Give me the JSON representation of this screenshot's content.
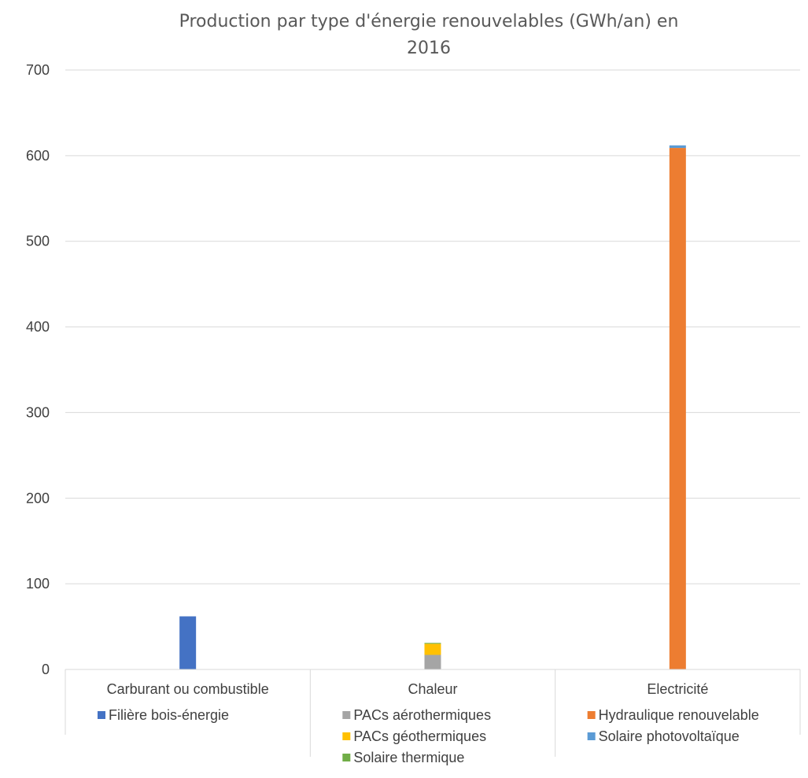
{
  "chart_data": {
    "type": "bar",
    "stacked": true,
    "title_line1": "Production par type d'énergie renouvelables (GWh/an) en",
    "title_line2": "2016",
    "ylim": [
      0,
      700
    ],
    "yticks": [
      0,
      100,
      200,
      300,
      400,
      500,
      600,
      700
    ],
    "grid": true,
    "legend_placement": "under each category",
    "categories": [
      {
        "label": "Carburant ou combustible",
        "series": [
          {
            "name": "Filière bois-énergie",
            "value": 62,
            "color": "#4472C4"
          }
        ]
      },
      {
        "label": "Chaleur",
        "series": [
          {
            "name": "PACs aérothermiques",
            "value": 17,
            "color": "#A5A5A5"
          },
          {
            "name": "PACs géothermiques",
            "value": 13,
            "color": "#FFC000"
          },
          {
            "name": "Solaire thermique",
            "value": 1,
            "color": "#70AD47"
          }
        ]
      },
      {
        "label": "Electricité",
        "series": [
          {
            "name": "Hydraulique renouvelable",
            "value": 609,
            "color": "#ED7D31"
          },
          {
            "name": "Solaire photovoltaïque",
            "value": 3,
            "color": "#5B9BD5"
          }
        ]
      }
    ]
  }
}
